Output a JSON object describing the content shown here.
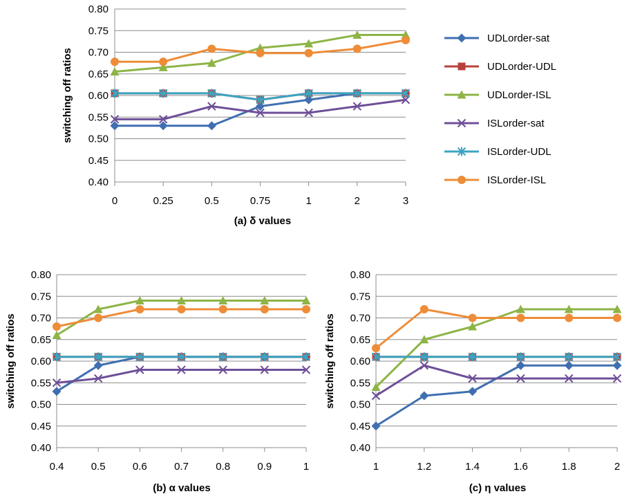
{
  "chart_data": [
    {
      "type": "line",
      "xlabel": "(a) δ values",
      "ylabel": "switching off ratios",
      "categories": [
        "0",
        "0.25",
        "0.5",
        "0.75",
        "1",
        "2",
        "3"
      ],
      "ylim": [
        0.4,
        0.8
      ],
      "yticks": [
        "0.40",
        "0.45",
        "0.50",
        "0.55",
        "0.60",
        "0.65",
        "0.70",
        "0.75",
        "0.80"
      ],
      "grid": true,
      "legend": "right",
      "series": [
        {
          "name": "UDLorder-sat",
          "values": [
            0.53,
            0.53,
            0.53,
            0.575,
            0.59,
            0.605,
            0.605
          ]
        },
        {
          "name": "UDLorder-UDL",
          "values": [
            0.605,
            0.605,
            0.605,
            0.59,
            0.605,
            0.605,
            0.605
          ]
        },
        {
          "name": "UDLorder-ISL",
          "values": [
            0.655,
            0.665,
            0.675,
            0.71,
            0.72,
            0.74,
            0.74
          ]
        },
        {
          "name": "ISLorder-sat",
          "values": [
            0.545,
            0.545,
            0.575,
            0.56,
            0.56,
            0.575,
            0.59
          ]
        },
        {
          "name": "ISLorder-UDL",
          "values": [
            0.605,
            0.605,
            0.605,
            0.59,
            0.605,
            0.605,
            0.605
          ]
        },
        {
          "name": "ISLorder-ISL",
          "values": [
            0.678,
            0.678,
            0.708,
            0.698,
            0.698,
            0.708,
            0.728
          ]
        }
      ]
    },
    {
      "type": "line",
      "xlabel": "(b) α values",
      "ylabel": "switching off ratios",
      "categories": [
        "0.4",
        "0.5",
        "0.6",
        "0.7",
        "0.8",
        "0.9",
        "1"
      ],
      "ylim": [
        0.4,
        0.8
      ],
      "yticks": [
        "0.40",
        "0.45",
        "0.50",
        "0.55",
        "0.60",
        "0.65",
        "0.70",
        "0.75",
        "0.80"
      ],
      "grid": true,
      "series": [
        {
          "name": "UDLorder-sat",
          "values": [
            0.53,
            0.59,
            0.61,
            0.61,
            0.61,
            0.61,
            0.61
          ]
        },
        {
          "name": "UDLorder-UDL",
          "values": [
            0.61,
            0.61,
            0.61,
            0.61,
            0.61,
            0.61,
            0.61
          ]
        },
        {
          "name": "UDLorder-ISL",
          "values": [
            0.66,
            0.72,
            0.74,
            0.74,
            0.74,
            0.74,
            0.74
          ]
        },
        {
          "name": "ISLorder-sat",
          "values": [
            0.55,
            0.56,
            0.58,
            0.58,
            0.58,
            0.58,
            0.58
          ]
        },
        {
          "name": "ISLorder-UDL",
          "values": [
            0.61,
            0.61,
            0.61,
            0.61,
            0.61,
            0.61,
            0.61
          ]
        },
        {
          "name": "ISLorder-ISL",
          "values": [
            0.68,
            0.7,
            0.72,
            0.72,
            0.72,
            0.72,
            0.72
          ]
        }
      ]
    },
    {
      "type": "line",
      "xlabel": "(c) η values",
      "ylabel": "switching off ratios",
      "categories": [
        "1",
        "1.2",
        "1.4",
        "1.6",
        "1.8",
        "2"
      ],
      "ylim": [
        0.4,
        0.8
      ],
      "yticks": [
        "0.40",
        "0.45",
        "0.50",
        "0.55",
        "0.60",
        "0.65",
        "0.70",
        "0.75",
        "0.80"
      ],
      "grid": true,
      "series": [
        {
          "name": "UDLorder-sat",
          "values": [
            0.45,
            0.52,
            0.53,
            0.59,
            0.59,
            0.59
          ]
        },
        {
          "name": "UDLorder-UDL",
          "values": [
            0.61,
            0.61,
            0.61,
            0.61,
            0.61,
            0.61
          ]
        },
        {
          "name": "UDLorder-ISL",
          "values": [
            0.54,
            0.65,
            0.68,
            0.72,
            0.72,
            0.72
          ]
        },
        {
          "name": "ISLorder-sat",
          "values": [
            0.52,
            0.59,
            0.56,
            0.56,
            0.56,
            0.56
          ]
        },
        {
          "name": "ISLorder-UDL",
          "values": [
            0.61,
            0.61,
            0.61,
            0.61,
            0.61,
            0.61
          ]
        },
        {
          "name": "ISLorder-ISL",
          "values": [
            0.63,
            0.72,
            0.7,
            0.7,
            0.7,
            0.7
          ]
        }
      ]
    }
  ],
  "series_styles": [
    {
      "color": "#3F6FB0",
      "marker": "diamond"
    },
    {
      "color": "#B8413C",
      "marker": "square"
    },
    {
      "color": "#8DB446",
      "marker": "triangle"
    },
    {
      "color": "#6E4F98",
      "marker": "x"
    },
    {
      "color": "#3CA4C2",
      "marker": "star"
    },
    {
      "color": "#EE8C38",
      "marker": "circle"
    }
  ],
  "gridline_color": "#8C8C8C"
}
